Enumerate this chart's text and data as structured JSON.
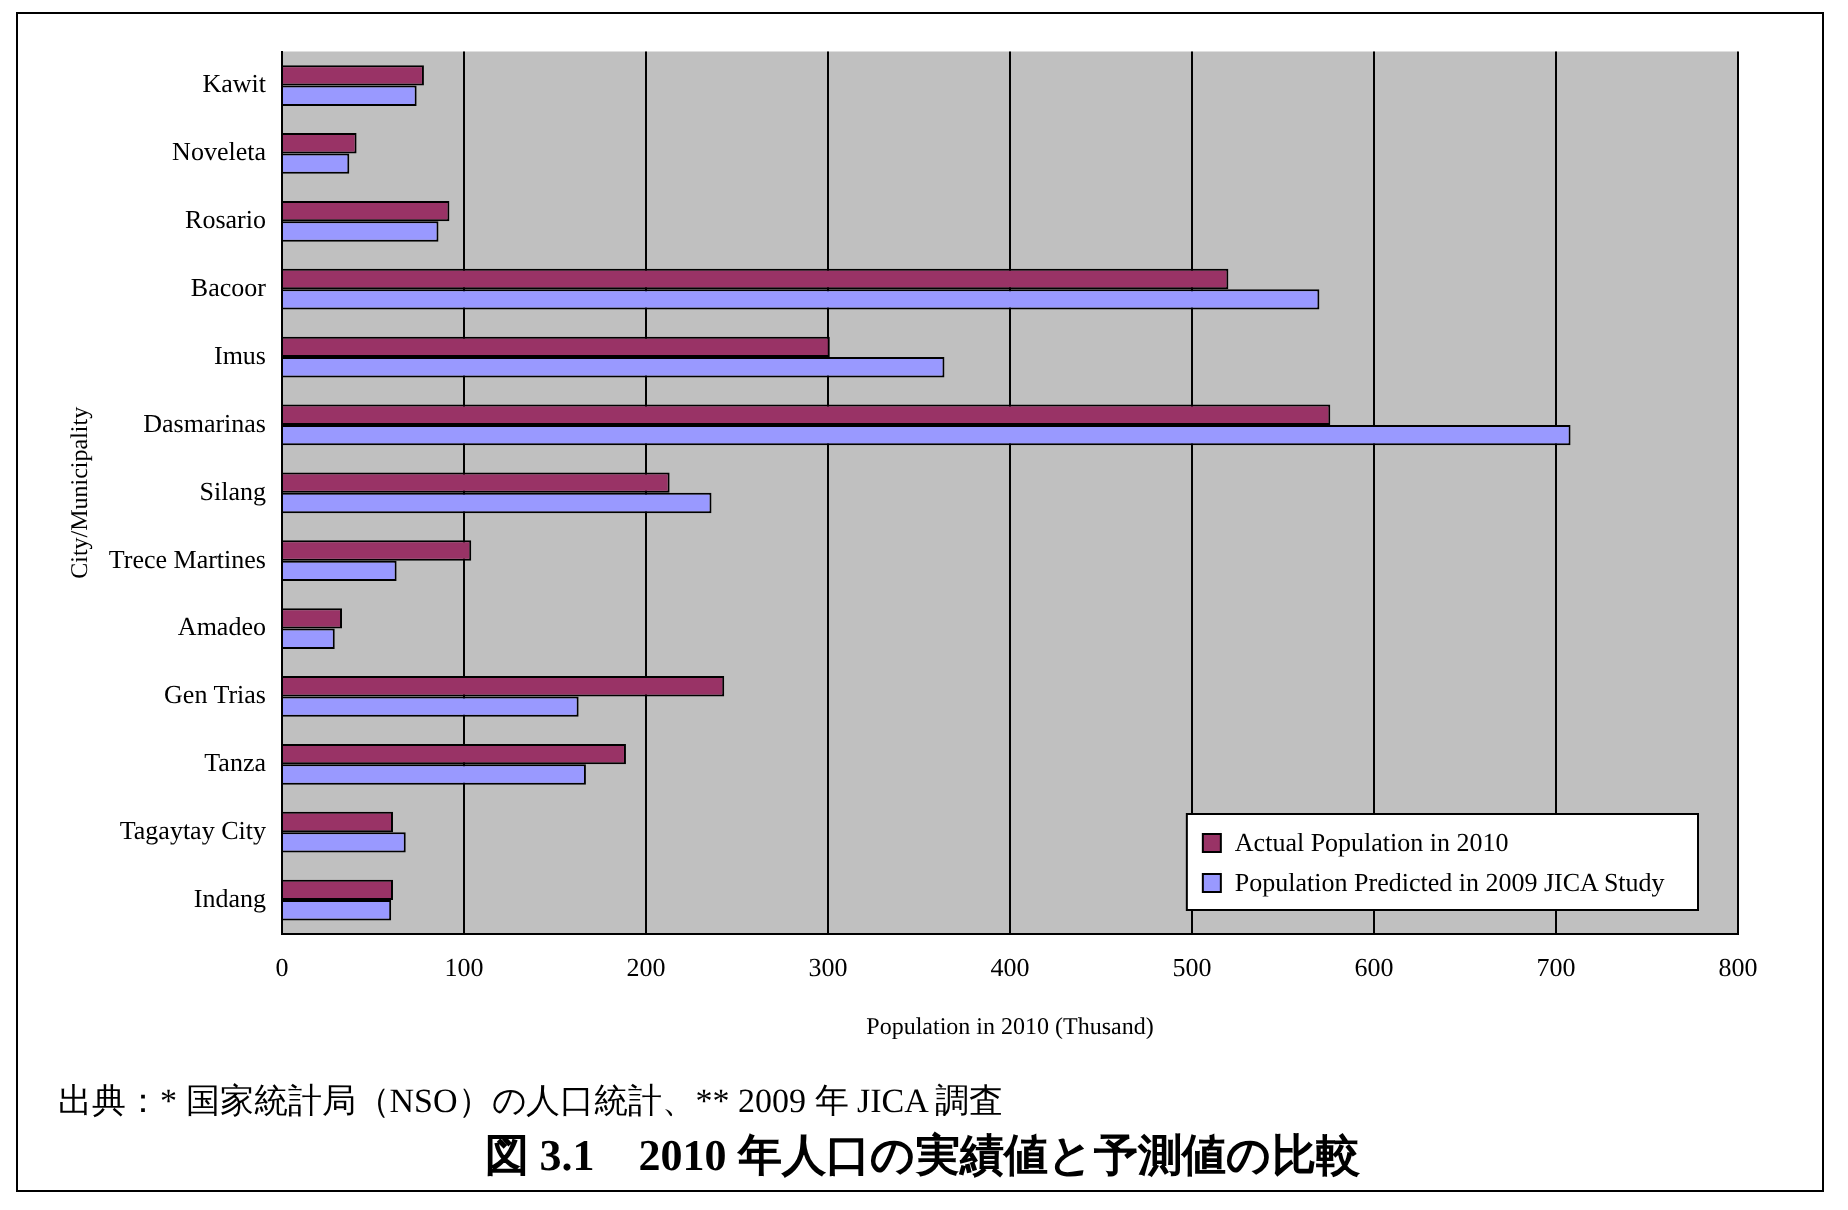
{
  "chart_data": {
    "type": "bar",
    "orientation": "horizontal",
    "xlabel": "Population in 2010 (Thusand)",
    "ylabel": "City/Municipality",
    "categories": [
      "Kawit",
      "Noveleta",
      "Rosario",
      "Bacoor",
      "Imus",
      "Dasmarinas",
      "Silang",
      "Trece Martines",
      "Amadeo",
      "Gen Trias",
      "Tanza",
      "Tagaytay City",
      "Indang"
    ],
    "series": [
      {
        "name": "Actual Population in 2010",
        "color": "#993366",
        "values": [
          78,
          41,
          92,
          520,
          301,
          576,
          213,
          104,
          33,
          243,
          189,
          61,
          61
        ]
      },
      {
        "name": "Population Predicted in 2009 JICA Study",
        "color": "#9999ff",
        "values": [
          74,
          37,
          86,
          570,
          364,
          708,
          236,
          63,
          29,
          163,
          167,
          68,
          60
        ]
      }
    ],
    "xlim": [
      0,
      800
    ],
    "xticks": [
      0,
      100,
      200,
      300,
      400,
      500,
      600,
      700,
      800
    ],
    "grid": "x",
    "legend": "bottom right",
    "annotations": [
      "出典：* 国家統計局（NSO）の人口統計、** 2009 年 JICA 調査",
      "図 3.1　2010 年人口の実績値と予測値の比較"
    ]
  }
}
